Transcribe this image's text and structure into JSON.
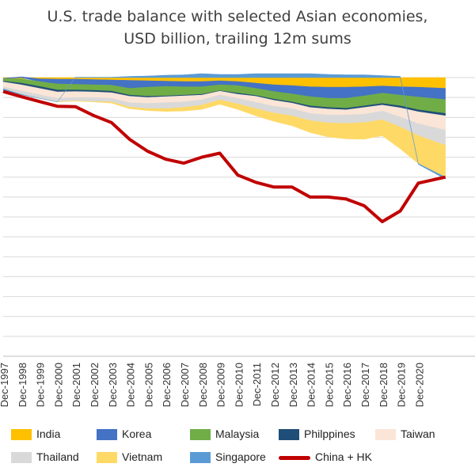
{
  "chart_data": {
    "type": "area",
    "title": "U.S. trade balance with selected Asian economies,",
    "subtitle": "USD billion, trailing 12m sums",
    "xlabel": "",
    "ylabel": "",
    "ylim": [
      -700,
      0
    ],
    "grid": true,
    "legend_position": "bottom",
    "x_tick_labels": [
      "Dec-1997",
      "Dec-1998",
      "Dec-1999",
      "Dec-2000",
      "Dec-2001",
      "Dec-2002",
      "Dec-2003",
      "Dec-2004",
      "Dec-2005",
      "Dec-2006",
      "Dec-2007",
      "Dec-2008",
      "Dec-2009",
      "Dec-2010",
      "Dec-2011",
      "Dec-2012",
      "Dec-2013",
      "Dec-2014",
      "Dec-2015",
      "Dec-2016",
      "Dec-2017",
      "Dec-2018",
      "Dec-2019",
      "Dec-2020"
    ],
    "x_years": [
      1997,
      1998,
      1999,
      2000,
      2001,
      2002,
      2003,
      2004,
      2005,
      2006,
      2007,
      2008,
      2009,
      2010,
      2011,
      2012,
      2013,
      2014,
      2015,
      2016,
      2017,
      2018,
      2019,
      2020,
      2021.5
    ],
    "series": [
      {
        "name": "India",
        "color": "#FFC000",
        "kind": "area",
        "values": [
          -2,
          -3,
          -3,
          -4,
          -4,
          -5,
          -6,
          -7,
          -8,
          -9,
          -10,
          -10,
          -8,
          -10,
          -14,
          -18,
          -20,
          -23,
          -24,
          -24,
          -23,
          -21,
          -23,
          -24,
          -27
        ]
      },
      {
        "name": "Korea",
        "color": "#4472C4",
        "kind": "area",
        "values": [
          -1,
          2,
          -7,
          -12,
          -13,
          -13,
          -13,
          -20,
          -16,
          -13,
          -13,
          -13,
          -10,
          -10,
          -13,
          -17,
          -21,
          -25,
          -28,
          -28,
          -23,
          -18,
          -21,
          -25,
          -28
        ]
      },
      {
        "name": "Malaysia",
        "color": "#70AD47",
        "kind": "area",
        "values": [
          -6,
          -11,
          -12,
          -15,
          -14,
          -14,
          -15,
          -17,
          -23,
          -24,
          -21,
          -19,
          -15,
          -19,
          -18,
          -19,
          -20,
          -23,
          -23,
          -25,
          -25,
          -26,
          -27,
          -32,
          -35
        ]
      },
      {
        "name": "Philppines",
        "color": "#1F4E79",
        "kind": "area",
        "values": [
          -2,
          -4,
          -5,
          -5,
          -4,
          -4,
          -4,
          -3,
          -3,
          -2,
          -2,
          -2,
          -1,
          -3,
          -2,
          -3,
          -3,
          -4,
          -4,
          -4,
          -4,
          -4,
          -5,
          -5,
          -6
        ]
      },
      {
        "name": "Taiwan",
        "color": "#FBE5D6",
        "kind": "area",
        "values": [
          -12,
          -15,
          -16,
          -16,
          -15,
          -14,
          -14,
          -16,
          -15,
          -15,
          -15,
          -12,
          -10,
          -10,
          -15,
          -15,
          -14,
          -15,
          -15,
          -13,
          -17,
          -15,
          -23,
          -30,
          -36
        ]
      },
      {
        "name": "Thailand",
        "color": "#D9D9D9",
        "kind": "area",
        "values": [
          -5,
          -9,
          -9,
          -9,
          -8,
          -10,
          -9,
          -11,
          -13,
          -15,
          -14,
          -13,
          -12,
          -14,
          -16,
          -17,
          -18,
          -18,
          -20,
          -21,
          -21,
          -22,
          -25,
          -30,
          -38
        ]
      },
      {
        "name": "Vietnam",
        "color": "#FFD966",
        "kind": "area",
        "values": [
          0,
          0,
          0,
          0,
          -1,
          -1,
          -3,
          -4,
          -5,
          -7,
          -9,
          -11,
          -11,
          -14,
          -18,
          -21,
          -25,
          -30,
          -35,
          -39,
          -42,
          -40,
          -55,
          -70,
          -80
        ]
      },
      {
        "name": "Singapore",
        "color": "#5B9BD5",
        "kind": "area",
        "values": [
          -3,
          -1,
          0,
          0,
          1,
          1,
          1,
          3,
          4,
          6,
          7,
          10,
          8,
          8,
          10,
          10,
          10,
          10,
          8,
          7,
          7,
          5,
          3,
          -2,
          -5
        ]
      },
      {
        "name": "China + HK",
        "color": "#C00000",
        "kind": "line",
        "values": [
          -35,
          -48,
          -60,
          -72,
          -73,
          -95,
          -113,
          -155,
          -185,
          -205,
          -215,
          -200,
          -190,
          -245,
          -263,
          -275,
          -275,
          -300,
          -300,
          -305,
          -322,
          -362,
          -335,
          -265,
          -250
        ]
      }
    ]
  },
  "legend": [
    {
      "name": "India",
      "color": "#FFC000",
      "kind": "box"
    },
    {
      "name": "Korea",
      "color": "#4472C4",
      "kind": "box"
    },
    {
      "name": "Malaysia",
      "color": "#70AD47",
      "kind": "box"
    },
    {
      "name": "Philppines",
      "color": "#1F4E79",
      "kind": "box"
    },
    {
      "name": "Taiwan",
      "color": "#FBE5D6",
      "kind": "box"
    },
    {
      "name": "Thailand",
      "color": "#D9D9D9",
      "kind": "box"
    },
    {
      "name": "Vietnam",
      "color": "#FFD966",
      "kind": "box"
    },
    {
      "name": "Singapore",
      "color": "#5B9BD5",
      "kind": "box"
    },
    {
      "name": "China + HK",
      "color": "#C00000",
      "kind": "line"
    }
  ]
}
